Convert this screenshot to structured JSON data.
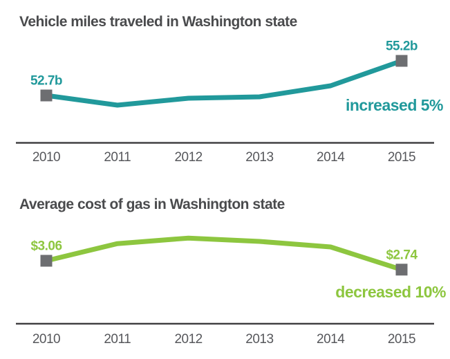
{
  "chart_data": [
    {
      "type": "line",
      "title": "Vehicle miles traveled in Washington state",
      "categories": [
        "2010",
        "2011",
        "2012",
        "2013",
        "2014",
        "2015"
      ],
      "values": [
        52.7,
        52.0,
        52.5,
        52.6,
        53.4,
        55.2
      ],
      "start_point_label": "52.7b",
      "end_point_label": "55.2b",
      "annotation": "increased 5%",
      "line_color": "#21999b",
      "annotation_color": "#21999b",
      "marker_color": "#6d6e71",
      "axis_color": "#414042",
      "ylim": [
        51.5,
        55.8
      ],
      "grid": false,
      "legend": "none",
      "markers": "first and last point only"
    },
    {
      "type": "line",
      "title": "Average cost of gas in Washington state",
      "categories": [
        "2010",
        "2011",
        "2012",
        "2013",
        "2014",
        "2015"
      ],
      "values": [
        3.06,
        3.68,
        3.88,
        3.76,
        3.56,
        2.74
      ],
      "start_point_label": "$3.06",
      "end_point_label": "$2.74",
      "annotation": "decreased 10%",
      "line_color": "#8dc63f",
      "annotation_color": "#8dc63f",
      "marker_color": "#6d6e71",
      "axis_color": "#414042",
      "ylim": [
        2.6,
        4.0
      ],
      "grid": false,
      "legend": "none",
      "markers": "first and last point only"
    }
  ]
}
